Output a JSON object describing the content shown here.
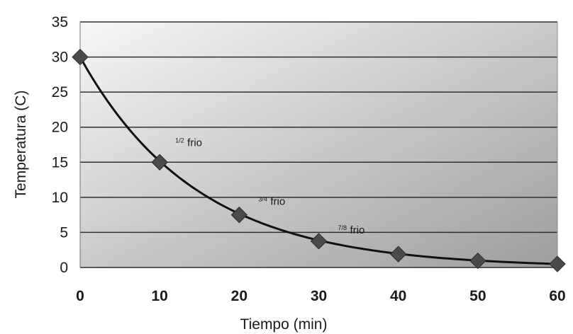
{
  "chart_data": {
    "type": "scatter",
    "title": "",
    "xlabel": "Tiempo (min)",
    "ylabel": "Temperatura (C)",
    "xlim": [
      0,
      60
    ],
    "ylim": [
      0,
      35
    ],
    "x_ticks": [
      "0",
      "10",
      "20",
      "30",
      "40",
      "50",
      "60"
    ],
    "y_ticks": [
      "0",
      "5",
      "10",
      "15",
      "20",
      "25",
      "30",
      "35"
    ],
    "grid": "horizontal",
    "series": [
      {
        "x": [
          0,
          10,
          20,
          30,
          40,
          50,
          60
        ],
        "y": [
          30,
          15,
          7.5,
          3.75,
          1.9,
          0.95,
          0.5
        ],
        "marker": "diamond",
        "color": "#4a4a4a"
      }
    ],
    "trendline": {
      "type": "exponential",
      "color": "#111111"
    },
    "annotations": [
      {
        "fraction": "1/2",
        "text": "frio",
        "x": 10,
        "y": 15
      },
      {
        "fraction": "3/4",
        "text": "frio",
        "x": 20,
        "y": 7.5
      },
      {
        "fraction": "7/8",
        "text": "frio",
        "x": 30,
        "y": 3.75
      }
    ],
    "colors": {
      "plot_bg_light": "#f7f7f7",
      "plot_bg_dark": "#9d9d9d",
      "gridline": "#2f2f2f",
      "marker": "#4a4a4a",
      "marker_stroke": "#2a2a2a",
      "curve": "#111111"
    }
  }
}
